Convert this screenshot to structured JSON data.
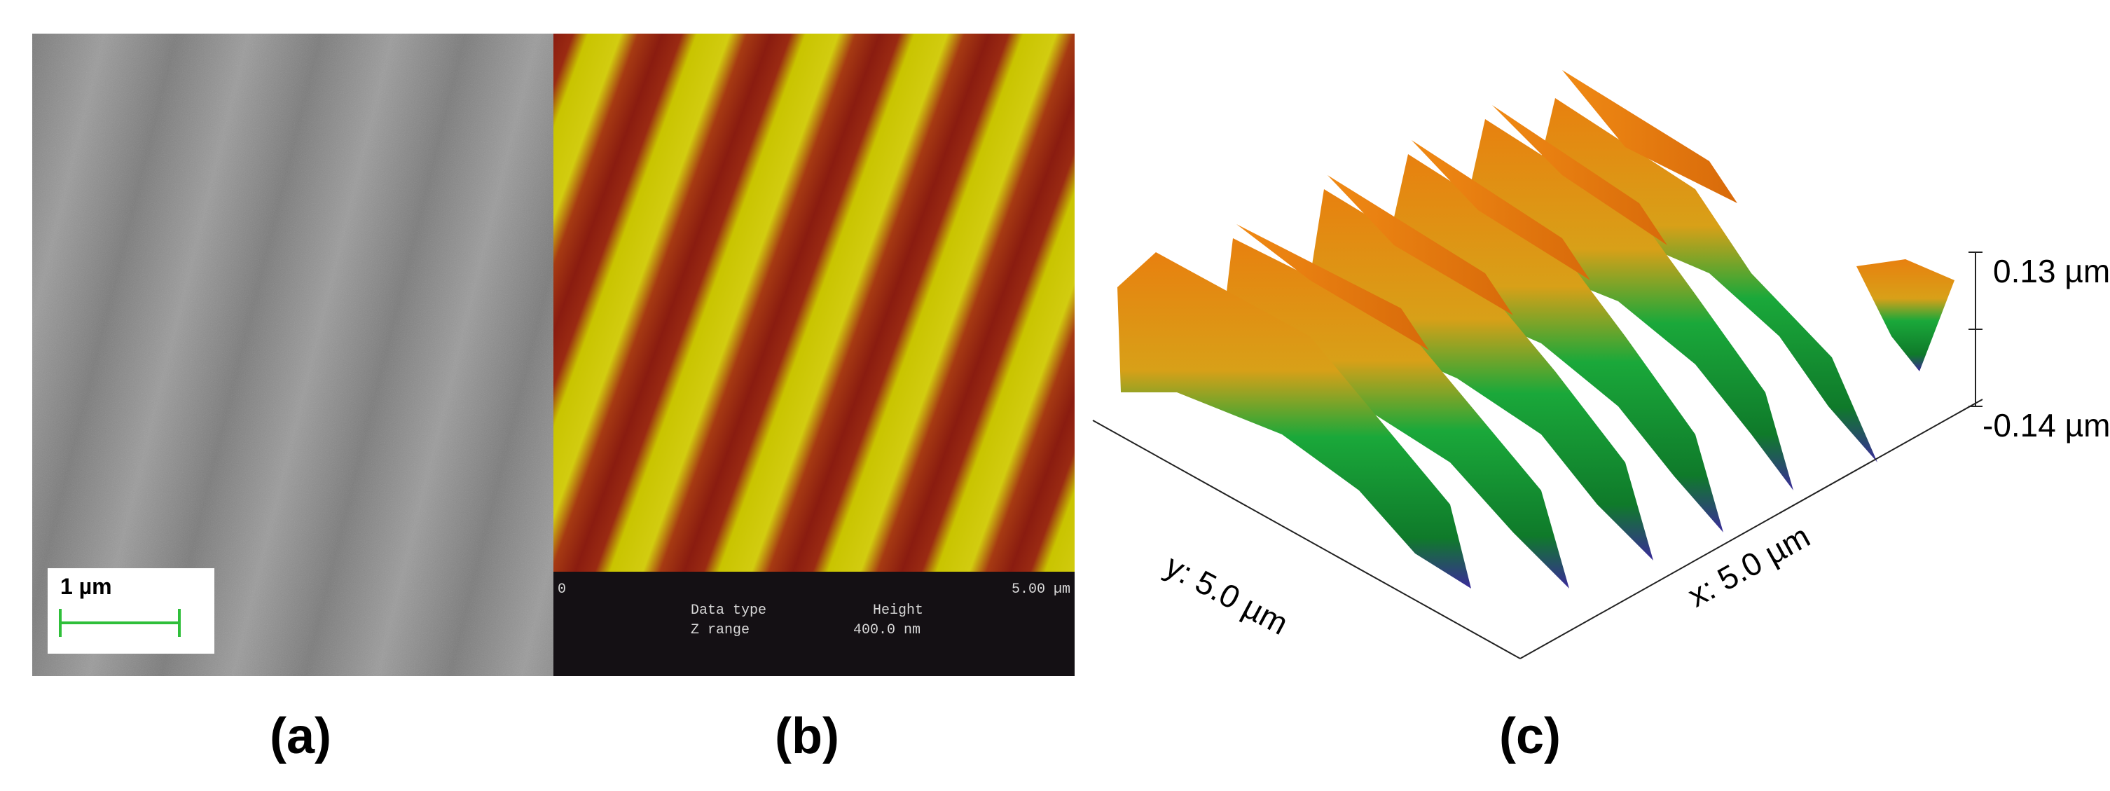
{
  "panel_a": {
    "caption": "(a)",
    "scale_bar": {
      "label": "1 µm"
    }
  },
  "panel_b": {
    "caption": "(b)",
    "axis_start": "0",
    "axis_end": "5.00 µm",
    "data_type_label": "Data type",
    "data_type_value": "Height",
    "z_range_label": "Z range",
    "z_range_value": "400.0 nm"
  },
  "panel_c": {
    "caption": "(c)",
    "z_max_label": "0.13 µm",
    "z_min_label": "-0.14 µm",
    "y_axis_label": "y: 5.0 µm",
    "x_axis_label": "x: 5.0 µm"
  },
  "colors": {
    "sem_gray": "#8a8a8a",
    "afm_ridge": "#c9c400",
    "afm_groove": "#8a1c10",
    "surface_peak": "#e8800f",
    "surface_mid": "#1aa83a",
    "surface_low": "#3a2a9a",
    "scale_bar": "#2fbf3a"
  }
}
